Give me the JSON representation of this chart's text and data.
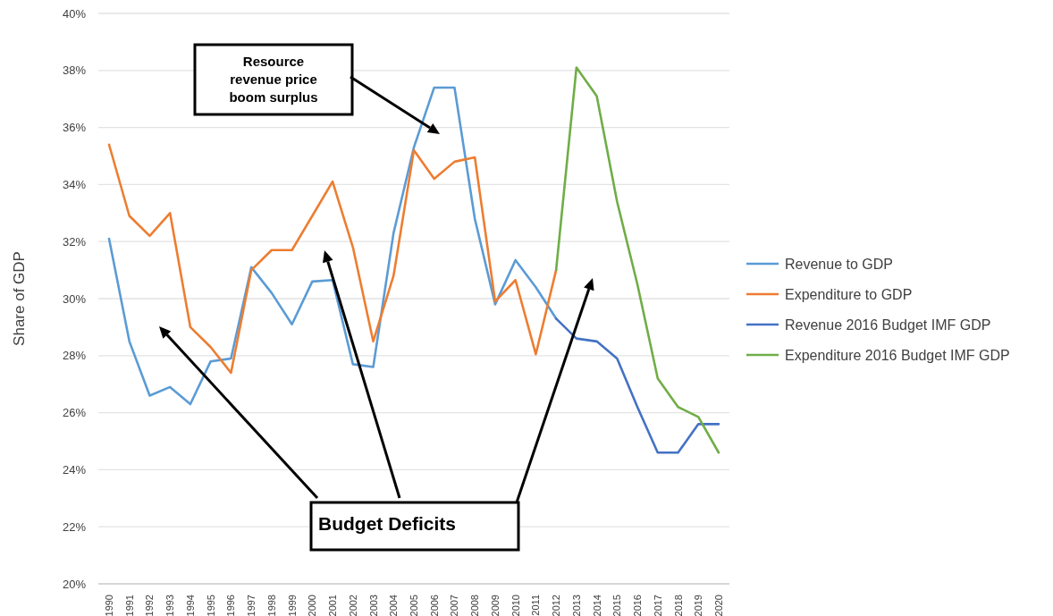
{
  "chart_data": {
    "type": "line",
    "ylabel": "Share of GDP",
    "categories": [
      "1990",
      "1991",
      "1992",
      "1993",
      "1994",
      "1995",
      "1996",
      "1997",
      "1998",
      "1999",
      "2000",
      "2001",
      "2002",
      "2003",
      "2004",
      "2005",
      "2006",
      "2007",
      "2008",
      "2009",
      "2010",
      "2011",
      "2012",
      "2013",
      "2014",
      "2015",
      "2016",
      "2017",
      "2018",
      "2019",
      "2020"
    ],
    "series": [
      {
        "name": "Revenue to GDP",
        "color": "#5b9bd5",
        "values": [
          32.1,
          28.5,
          26.6,
          26.9,
          26.3,
          27.8,
          27.9,
          31.1,
          30.2,
          29.1,
          30.6,
          30.65,
          27.7,
          27.6,
          32.3,
          35.3,
          37.4,
          37.4,
          32.8,
          29.8,
          31.35,
          30.4,
          29.3,
          null,
          null,
          null,
          null,
          null,
          null,
          null,
          null
        ]
      },
      {
        "name": "Expenditure to GDP",
        "color": "#ed7d31",
        "values": [
          35.4,
          32.9,
          32.2,
          33.0,
          29.0,
          28.3,
          27.4,
          31.0,
          31.7,
          31.7,
          32.9,
          34.1,
          31.8,
          28.5,
          30.8,
          35.2,
          34.2,
          34.8,
          34.95,
          29.9,
          30.65,
          28.05,
          31.0,
          null,
          null,
          null,
          null,
          null,
          null,
          null,
          null
        ]
      },
      {
        "name": "Revenue 2016 Budget IMF GDP",
        "color": "#4472c4",
        "values": [
          null,
          null,
          null,
          null,
          null,
          null,
          null,
          null,
          null,
          null,
          null,
          null,
          null,
          null,
          null,
          null,
          null,
          null,
          null,
          null,
          null,
          null,
          29.3,
          28.6,
          28.5,
          27.9,
          26.2,
          24.6,
          24.6,
          25.6,
          25.6
        ]
      },
      {
        "name": "Expenditure 2016 Budget IMF GDP",
        "color": "#70ad47",
        "values": [
          null,
          null,
          null,
          null,
          null,
          null,
          null,
          null,
          null,
          null,
          null,
          null,
          null,
          null,
          null,
          null,
          null,
          null,
          null,
          null,
          null,
          null,
          31.0,
          38.1,
          37.1,
          33.4,
          30.5,
          27.2,
          26.2,
          25.85,
          24.6
        ]
      }
    ],
    "ylim": [
      20,
      40
    ],
    "yticks": [
      {
        "value": 20,
        "label": "20%"
      },
      {
        "value": 22,
        "label": "22%"
      },
      {
        "value": 24,
        "label": "24%"
      },
      {
        "value": 26,
        "label": "26%"
      },
      {
        "value": 28,
        "label": "28%"
      },
      {
        "value": 30,
        "label": "30%"
      },
      {
        "value": 32,
        "label": "32%"
      },
      {
        "value": 34,
        "label": "34%"
      },
      {
        "value": 36,
        "label": "36%"
      },
      {
        "value": 38,
        "label": "38%"
      },
      {
        "value": 40,
        "label": "40%"
      }
    ],
    "grid": "y",
    "legend": "right",
    "marker": "none",
    "line_style": "solid",
    "annotations": [
      "Resource revenue price boom surplus",
      "Budget Deficits"
    ]
  }
}
